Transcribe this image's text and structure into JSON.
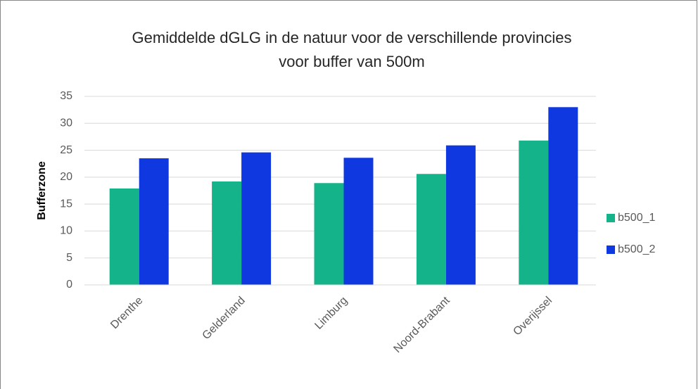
{
  "chart_data": {
    "type": "bar",
    "title": [
      "Gemiddelde dGLG in de natuur voor de verschillende provincies",
      "voor buffer van 500m"
    ],
    "y_label": "Bufferzone",
    "categories": [
      "Drenthe",
      "Gelderland",
      "Limburg",
      "Noord-Brabant",
      "Overijssel"
    ],
    "series": [
      {
        "name": "b500_1",
        "color": "#14b38a",
        "values": [
          17.9,
          19.2,
          18.9,
          20.6,
          26.8
        ]
      },
      {
        "name": "b500_2",
        "color": "#1038e0",
        "values": [
          23.5,
          24.6,
          23.6,
          25.9,
          33.0
        ]
      }
    ],
    "ylim": [
      0,
      35
    ],
    "yticks": [
      0,
      5,
      10,
      15,
      20,
      25,
      30,
      35
    ],
    "grid": true,
    "legend": "right"
  }
}
